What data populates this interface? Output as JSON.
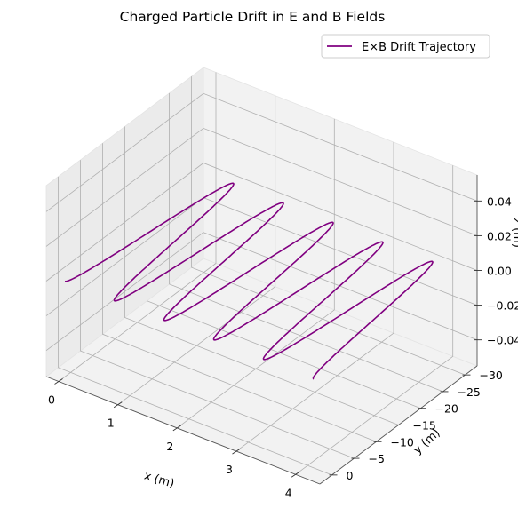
{
  "chart_data": {
    "type": "line3d",
    "title": "Charged Particle Drift in E and B Fields",
    "xlabel": "x (m)",
    "ylabel": "y (m)",
    "zlabel": "z (m)",
    "x_ticks": [
      "0",
      "1",
      "2",
      "3",
      "4"
    ],
    "y_ticks": [
      "0",
      "−5",
      "−10",
      "−15",
      "−20",
      "−25",
      "−30"
    ],
    "z_ticks": [
      "0.04",
      "0.02",
      "0.00",
      "−0.02",
      "−0.04"
    ],
    "xlim": [
      -0.21,
      4.41
    ],
    "ylim": [
      -32.7,
      2.7
    ],
    "zlim": [
      -0.055,
      0.055
    ],
    "legend_position": "upper right",
    "grid": true,
    "series": [
      {
        "name": "E×B Drift Trajectory",
        "color": "#800080",
        "z_value": 0,
        "loops": 5,
        "x_range": [
          0,
          4.2
        ],
        "y_range": [
          -31,
          1.3
        ]
      }
    ]
  }
}
